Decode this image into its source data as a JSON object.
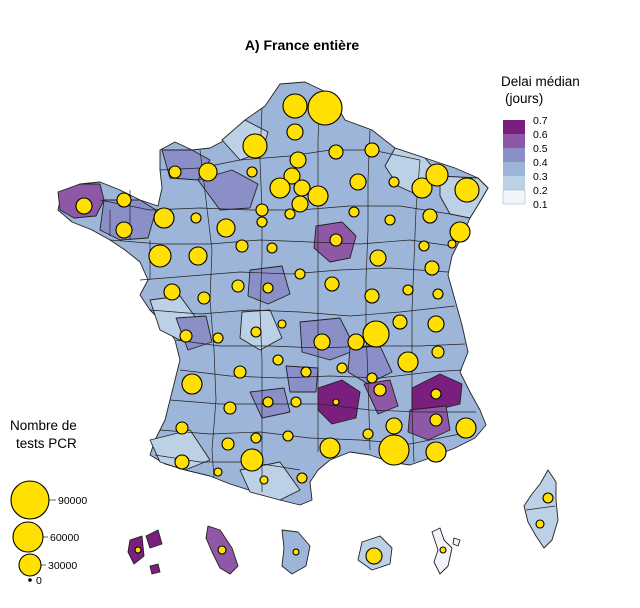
{
  "title": "A) France entière",
  "color_legend": {
    "title_line1": "Delai médian",
    "title_line2": "(jours)",
    "ticks": [
      "0.7",
      "0.6",
      "0.5",
      "0.4",
      "0.3",
      "0.2",
      "0.1"
    ],
    "swatches": [
      "#7b1f7f",
      "#8e58a7",
      "#8a8fc8",
      "#9cb5d8",
      "#bcd0e6",
      "#f1f5fb"
    ]
  },
  "size_legend": {
    "title_line1": "Nombre de",
    "title_line2": "tests PCR",
    "values": [
      "90000",
      "60000",
      "30000",
      "0"
    ]
  },
  "colors": {
    "bubble": "#ffe000",
    "outline": "#222222"
  }
}
